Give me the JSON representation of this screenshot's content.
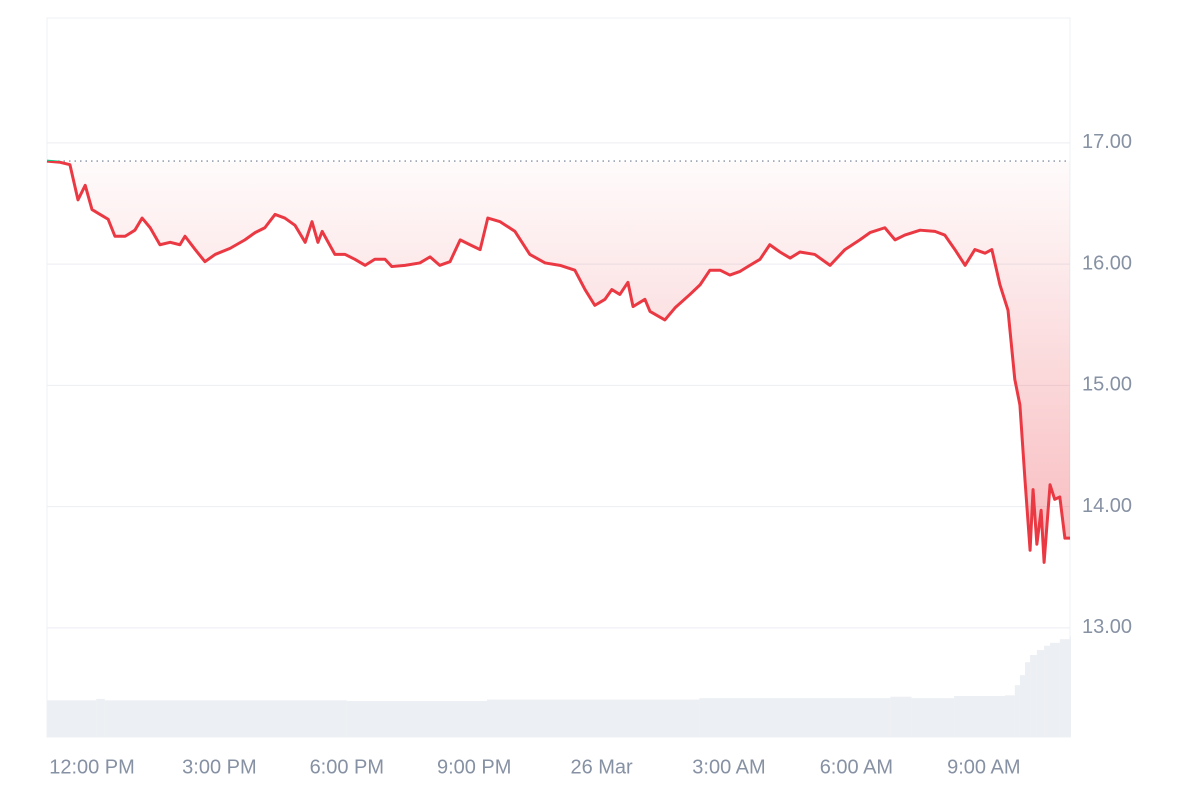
{
  "chart_data": {
    "type": "line",
    "x": [
      -1.06,
      -0.75,
      -0.52,
      -0.33,
      -0.16,
      0,
      0.19,
      0.38,
      0.54,
      0.78,
      1.01,
      1.18,
      1.37,
      1.6,
      1.84,
      2.07,
      2.19,
      2.43,
      2.66,
      2.9,
      3.25,
      3.6,
      3.84,
      4.07,
      4.31,
      4.54,
      4.78,
      5.02,
      5.18,
      5.32,
      5.42,
      5.72,
      5.96,
      6.19,
      6.43,
      6.66,
      6.9,
      7.06,
      7.37,
      7.72,
      7.96,
      8.19,
      8.43,
      8.67,
      8.9,
      9.14,
      9.32,
      9.61,
      9.96,
      10.31,
      10.67,
      11.02,
      11.37,
      11.61,
      11.84,
      12.08,
      12.24,
      12.43,
      12.62,
      12.74,
      13.02,
      13.14,
      13.49,
      13.73,
      14.08,
      14.32,
      14.55,
      14.79,
      15.02,
      15.26,
      15.49,
      15.73,
      15.96,
      16.2,
      16.44,
      16.67,
      17.02,
      17.38,
      17.73,
      18.08,
      18.32,
      18.67,
      18.91,
      19.14,
      19.5,
      19.85,
      20.08,
      20.32,
      20.56,
      20.79,
      21.03,
      21.19,
      21.38,
      21.57,
      21.73,
      21.85,
      21.97,
      22.09,
      22.16,
      22.25,
      22.35,
      22.42,
      22.56,
      22.67,
      22.79,
      22.91,
      23.03
    ],
    "values": [
      16.85,
      16.84,
      16.82,
      16.53,
      16.65,
      16.45,
      16.41,
      16.37,
      16.23,
      16.23,
      16.28,
      16.38,
      16.3,
      16.16,
      16.18,
      16.16,
      16.23,
      16.12,
      16.02,
      16.08,
      16.13,
      16.2,
      16.26,
      16.3,
      16.41,
      16.38,
      16.32,
      16.18,
      16.35,
      16.18,
      16.27,
      16.08,
      16.08,
      16.04,
      15.99,
      16.04,
      16.04,
      15.98,
      15.99,
      16.01,
      16.06,
      15.99,
      16.02,
      16.2,
      16.16,
      16.12,
      16.38,
      16.35,
      16.27,
      16.08,
      16.01,
      15.99,
      15.95,
      15.79,
      15.66,
      15.71,
      15.79,
      15.75,
      15.85,
      15.65,
      15.71,
      15.61,
      15.54,
      15.64,
      15.75,
      15.83,
      15.95,
      15.95,
      15.91,
      15.94,
      15.99,
      16.04,
      16.16,
      16.1,
      16.05,
      16.1,
      16.08,
      15.99,
      16.12,
      16.2,
      16.26,
      16.3,
      16.2,
      16.24,
      16.28,
      16.27,
      16.24,
      16.12,
      15.99,
      16.12,
      16.09,
      16.12,
      15.83,
      15.62,
      15.05,
      14.84,
      14.22,
      13.64,
      14.14,
      13.69,
      13.97,
      13.54,
      14.18,
      14.06,
      14.08,
      13.74,
      13.74
    ],
    "color": "#ea3943",
    "up_color": "#16c784",
    "baseline": 16.85,
    "xlim": [
      -1.06,
      23.03
    ],
    "ylim": [
      12.1,
      18.03
    ],
    "xticks": [
      {
        "value": 0,
        "label": "12:00 PM"
      },
      {
        "value": 3,
        "label": "3:00 PM"
      },
      {
        "value": 6,
        "label": "6:00 PM"
      },
      {
        "value": 9,
        "label": "9:00 PM"
      },
      {
        "value": 12,
        "label": "26 Mar"
      },
      {
        "value": 15,
        "label": "3:00 AM"
      },
      {
        "value": 18,
        "label": "6:00 AM"
      },
      {
        "value": 21,
        "label": "9:00 AM"
      }
    ],
    "yticks": [
      {
        "value": 13,
        "label": "13.00"
      },
      {
        "value": 14,
        "label": "14.00"
      },
      {
        "value": 15,
        "label": "15.00"
      },
      {
        "value": 16,
        "label": "16.00"
      },
      {
        "value": 17,
        "label": "17.00"
      }
    ],
    "grid": true,
    "volume": {
      "color": "#eceff3",
      "x": [
        -1.06,
        0.1,
        0.3,
        6.0,
        9.3,
        14.3,
        18.8,
        19.3,
        20.3,
        21.5,
        21.73,
        21.85,
        21.97,
        22.09,
        22.25,
        22.42,
        22.56,
        22.79,
        23.03
      ],
      "values": [
        5.1,
        5.3,
        5.1,
        5.0,
        5.2,
        5.4,
        5.6,
        5.4,
        5.7,
        5.8,
        7.2,
        8.6,
        10.4,
        11.4,
        12.1,
        12.7,
        13.1,
        13.6,
        14.0
      ],
      "ylim": [
        0,
        100
      ]
    }
  }
}
